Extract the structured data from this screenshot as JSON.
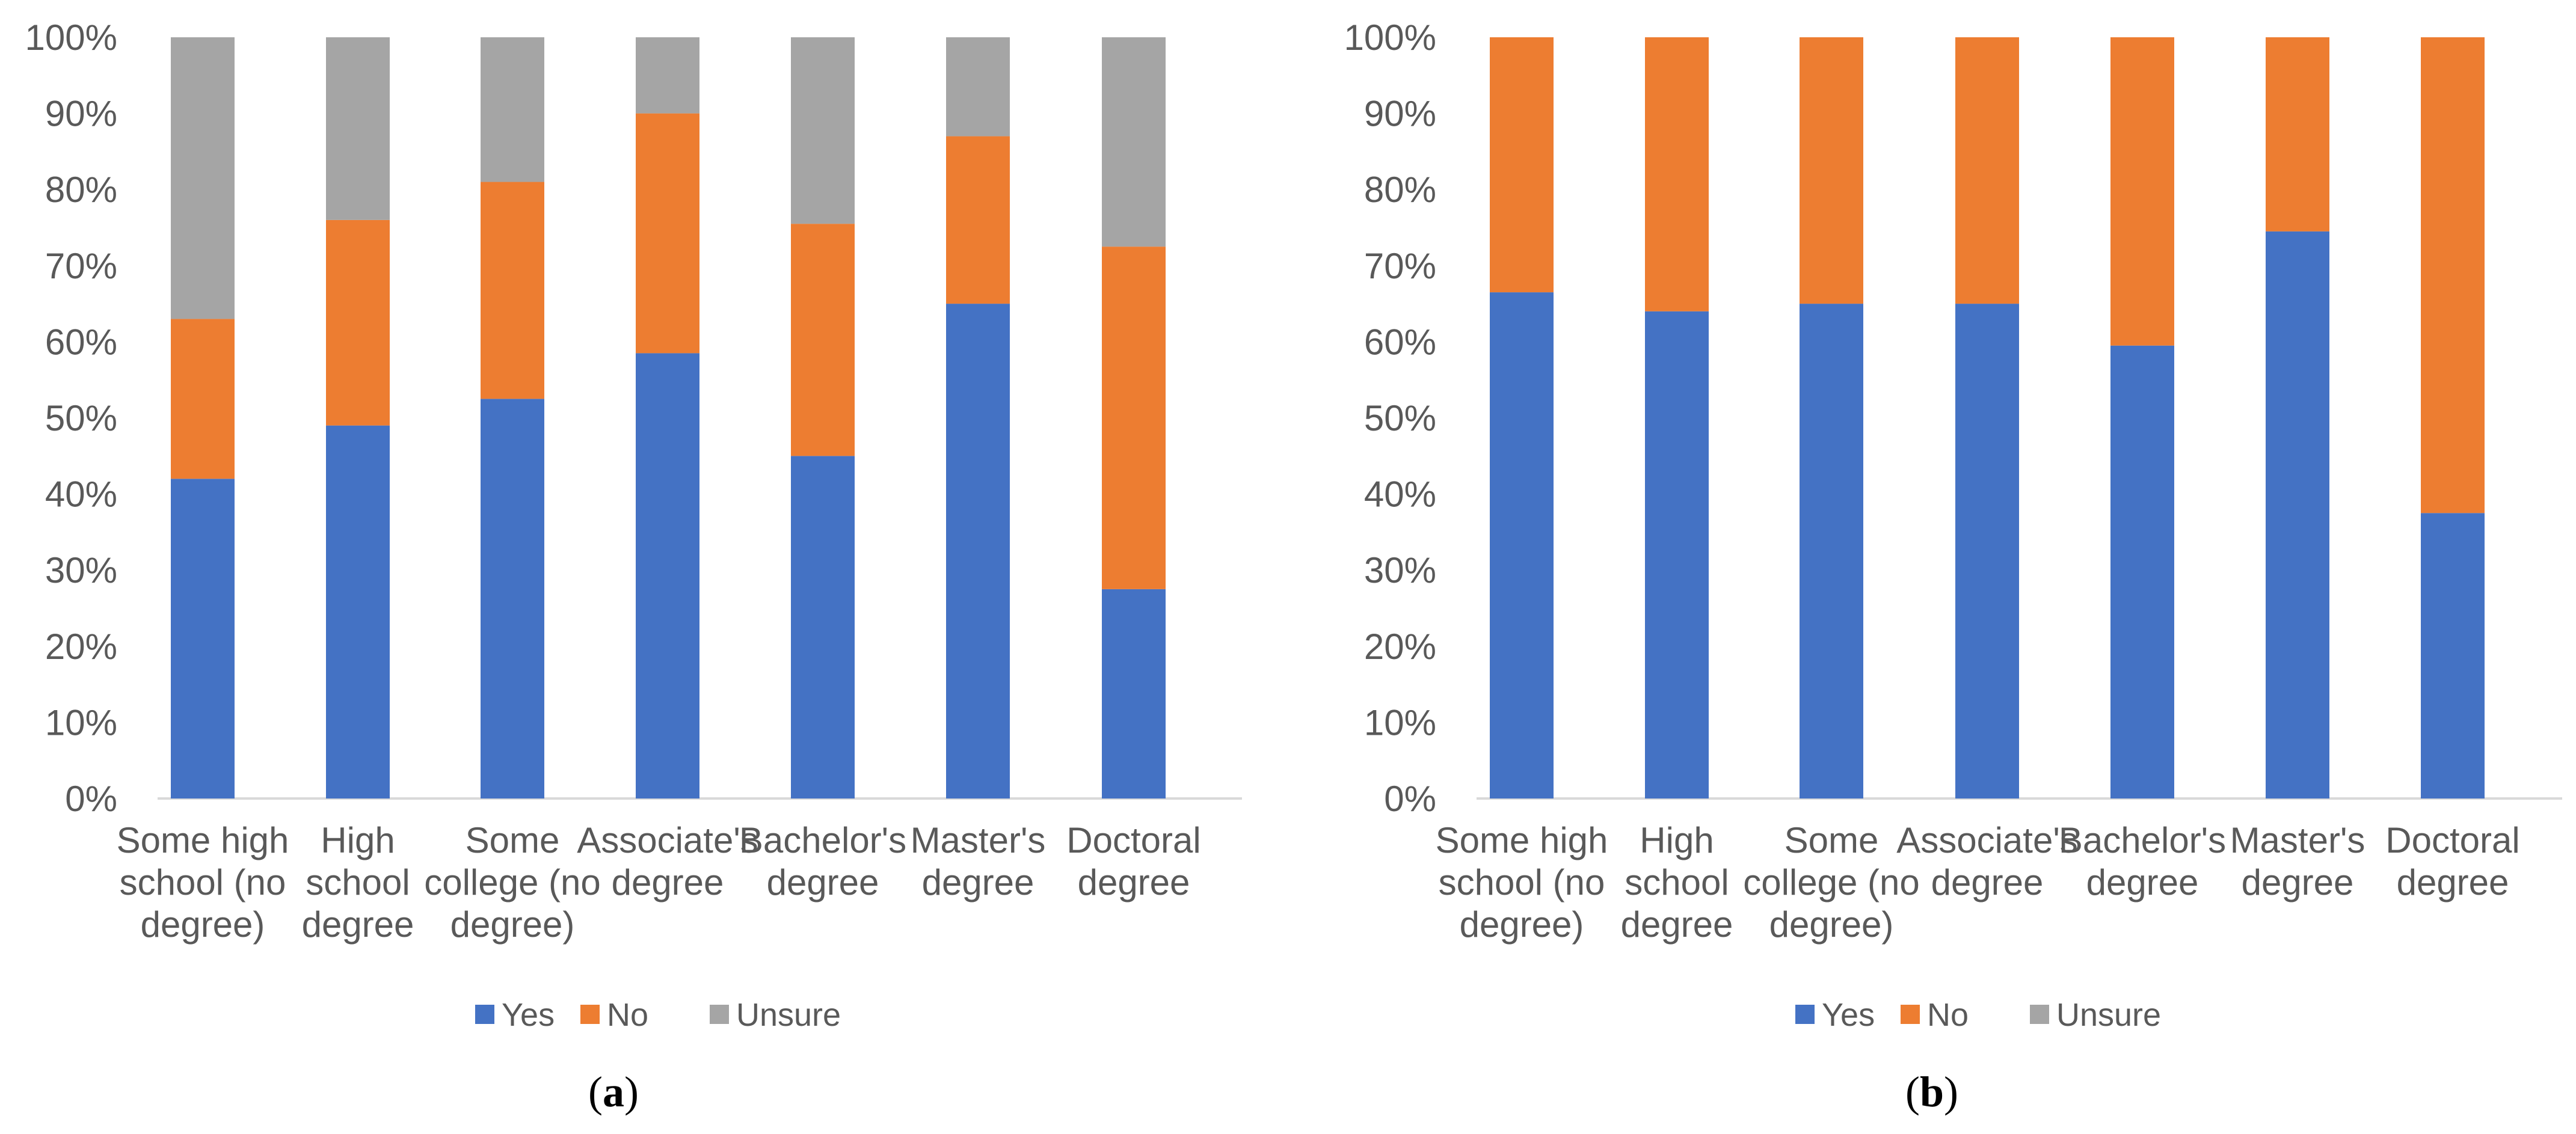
{
  "colors": {
    "yes": "#4472C4",
    "no": "#ED7D31",
    "unsure": "#A5A5A5",
    "axis": "#D9D9D9",
    "text": "#595959"
  },
  "legend": [
    "Yes",
    "No",
    "Unsure"
  ],
  "y_ticks": [
    "0%",
    "10%",
    "20%",
    "30%",
    "40%",
    "50%",
    "60%",
    "70%",
    "80%",
    "90%",
    "100%"
  ],
  "chart_data": [
    {
      "type": "bar",
      "stacked": true,
      "panel": "a",
      "panel_label": {
        "open": "(",
        "letter": "a",
        "close": ")"
      },
      "ylim": [
        0,
        100
      ],
      "categories": [
        [
          "Some high",
          "school (no",
          "degree)"
        ],
        [
          "High",
          "school",
          "degree"
        ],
        [
          "Some",
          "college (no",
          "degree)"
        ],
        [
          "Associate's",
          "degree"
        ],
        [
          "Bachelor's",
          "degree"
        ],
        [
          "Master's",
          "degree"
        ],
        [
          "Doctoral",
          "degree"
        ]
      ],
      "series": [
        {
          "name": "Yes",
          "values": [
            42,
            49,
            52.5,
            58.5,
            45,
            65,
            27.5
          ]
        },
        {
          "name": "No",
          "values": [
            21,
            27,
            28.5,
            31.5,
            30.5,
            22,
            45
          ]
        },
        {
          "name": "Unsure",
          "values": [
            37,
            24,
            19,
            10,
            24.5,
            13,
            27.5
          ]
        }
      ],
      "legend": [
        "Yes",
        "No",
        "Unsure"
      ],
      "legend_position": "bottom"
    },
    {
      "type": "bar",
      "stacked": true,
      "panel": "b",
      "panel_label": {
        "open": "(",
        "letter": "b",
        "close": ")"
      },
      "ylim": [
        0,
        100
      ],
      "categories": [
        [
          "Some high",
          "school (no",
          "degree)"
        ],
        [
          "High",
          "school",
          "degree"
        ],
        [
          "Some",
          "college (no",
          "degree)"
        ],
        [
          "Associate's",
          "degree"
        ],
        [
          "Bachelor's",
          "degree"
        ],
        [
          "Master's",
          "degree"
        ],
        [
          "Doctoral",
          "degree"
        ]
      ],
      "series": [
        {
          "name": "Yes",
          "values": [
            66.5,
            64,
            65,
            65,
            59.5,
            74.5,
            37.5
          ]
        },
        {
          "name": "No",
          "values": [
            33.5,
            36,
            35,
            35,
            40.5,
            25.5,
            62.5
          ]
        },
        {
          "name": "Unsure",
          "values": [
            0,
            0,
            0,
            0,
            0,
            0,
            0
          ]
        }
      ],
      "legend": [
        "Yes",
        "No",
        "Unsure"
      ],
      "legend_position": "bottom"
    }
  ]
}
